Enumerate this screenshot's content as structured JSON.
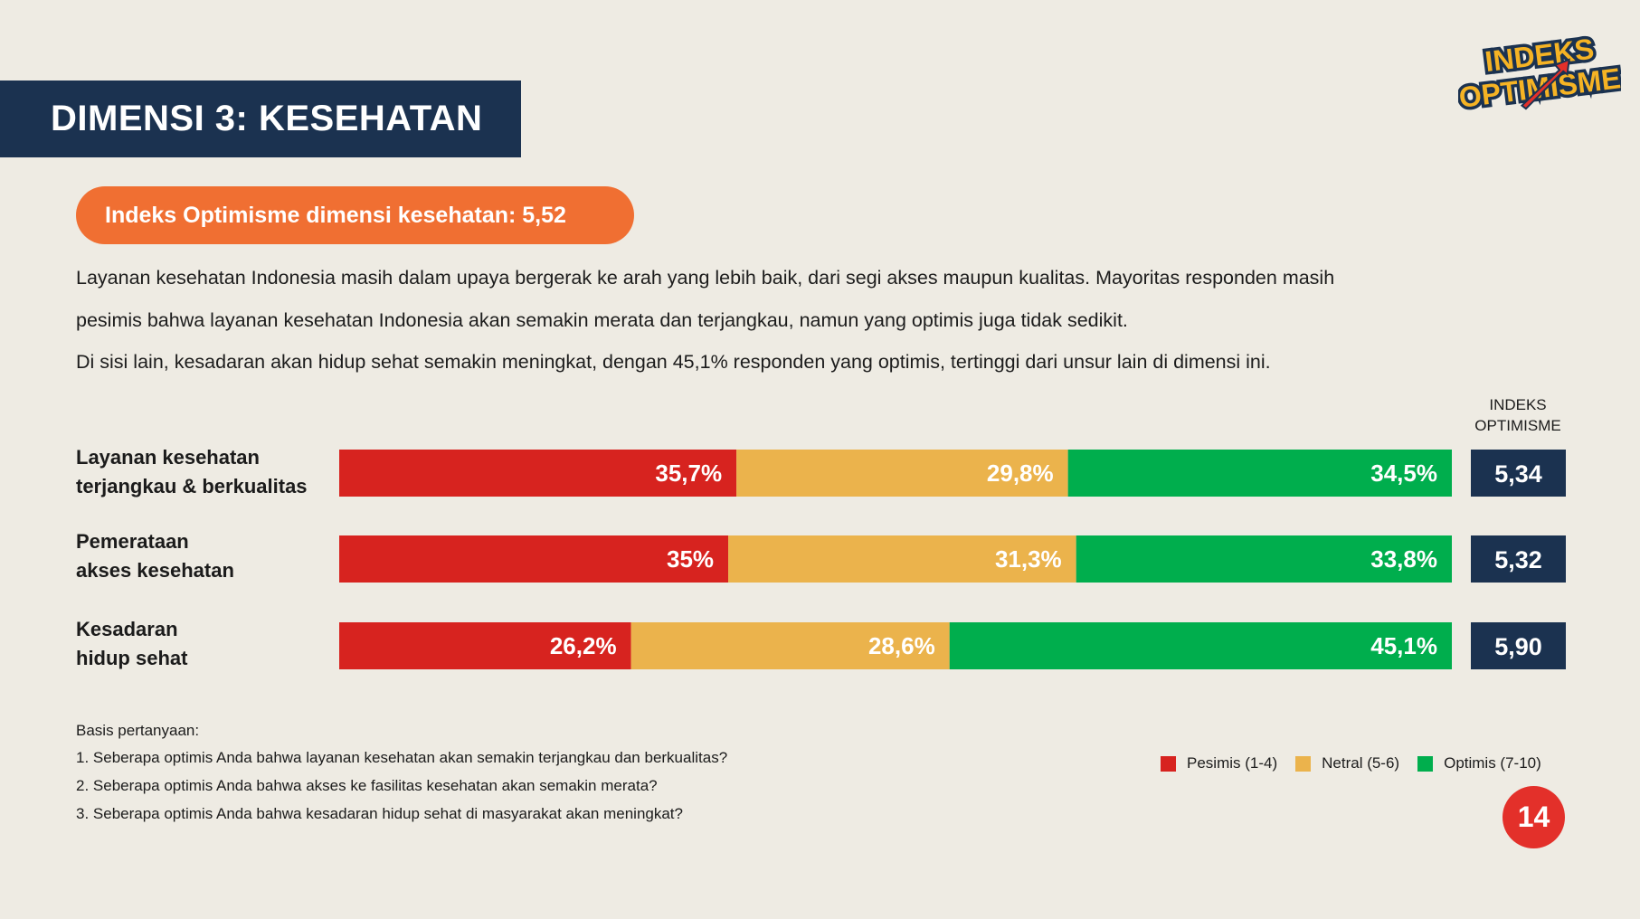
{
  "header": {
    "title": "DIMENSI 3: KESEHATAN"
  },
  "logo": {
    "line1": "INDEKS",
    "line2": "OPTIMISME"
  },
  "summary_pill": "Indeks Optimisme dimensi kesehatan: 5,52",
  "intro": [
    "Layanan kesehatan Indonesia masih dalam upaya bergerak ke arah yang lebih baik, dari segi akses maupun kualitas. Mayoritas responden masih",
    "pesimis bahwa layanan kesehatan Indonesia akan semakin merata dan terjangkau, namun yang optimis juga tidak sedikit.",
    "Di sisi lain, kesadaran akan hidup sehat semakin meningkat, dengan 45,1% responden yang optimis, tertinggi dari unsur lain di dimensi ini."
  ],
  "index_header": [
    "INDEKS",
    "OPTIMISME"
  ],
  "colors": {
    "pesimis": "#d7231f",
    "netral": "#ebb34c",
    "optimis": "#00ae4d",
    "index_box": "#1b3250",
    "accent": "#f06f32",
    "page_badge": "#e3302a"
  },
  "chart_data": {
    "type": "bar",
    "orientation": "horizontal",
    "stacked": true,
    "categories": [
      [
        "Layanan kesehatan",
        "terjangkau & berkualitas"
      ],
      [
        "Pemerataan",
        "akses kesehatan"
      ],
      [
        "Kesadaran",
        "hidup sehat"
      ]
    ],
    "series": [
      {
        "name": "Pesimis (1-4)",
        "values": [
          35.7,
          35.0,
          26.2
        ],
        "labels": [
          "35,7%",
          "35%",
          "26,2%"
        ]
      },
      {
        "name": "Netral (5-6)",
        "values": [
          29.8,
          31.3,
          28.6
        ],
        "labels": [
          "29,8%",
          "31,3%",
          "28,6%"
        ]
      },
      {
        "name": "Optimis (7-10)",
        "values": [
          34.5,
          33.8,
          45.1
        ],
        "labels": [
          "34,5%",
          "33,8%",
          "45,1%"
        ]
      }
    ],
    "index_values": [
      "5,34",
      "5,32",
      "5,90"
    ],
    "xlim": [
      0,
      100
    ]
  },
  "legend": [
    "Pesimis (1-4)",
    "Netral (5-6)",
    "Optimis (7-10)"
  ],
  "basis": {
    "title": "Basis pertanyaan:",
    "questions": [
      "1. Seberapa optimis Anda bahwa layanan kesehatan akan semakin terjangkau dan berkualitas?",
      "2. Seberapa optimis Anda bahwa akses ke fasilitas kesehatan akan semakin merata?",
      "3. Seberapa optimis Anda bahwa kesadaran hidup sehat di masyarakat akan meningkat?"
    ]
  },
  "page_number": "14"
}
